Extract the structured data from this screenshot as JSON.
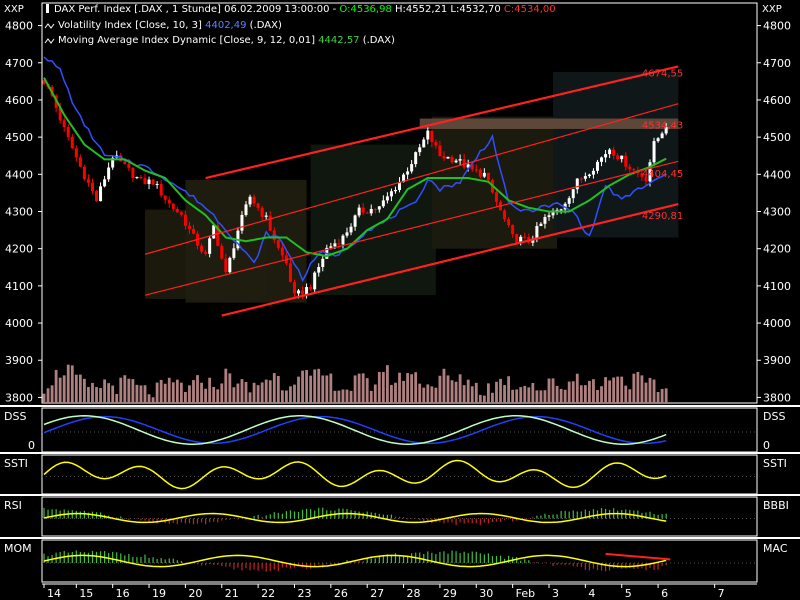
{
  "header": {
    "corner_left": "XXP",
    "corner_right": "XXP",
    "instrument": "DAX Perf. Index [.DAX , 1 Stunde] 06.02.2009 13:00:00 - ",
    "o_text": "O:4536,98",
    "h_text": " H:4552,21",
    "l_text": " L:4532,70",
    "c_text": " C:4534,00",
    "vol_text": "Volatility Index [Close, 10, 3] ",
    "vol_value": "4402,49",
    "vol_suffix": " (.DAX)",
    "ma_text": "Moving Average Index Dynamic [Close, 9, 12, 0,01] ",
    "ma_value": "4442,57",
    "ma_suffix": " (.DAX)"
  },
  "colors": {
    "up": "#ffffff",
    "down": "#ff0000",
    "volatility": "#3050ff",
    "moving_average": "#20c020",
    "channel": "#ff2020",
    "o_color": "#00ff00",
    "l_color": "#ffffff",
    "c_color": "#ff0000",
    "indicator_line": "#ffff00",
    "dss_fast": "#c0ffc0",
    "dss_slow": "#2040ff",
    "histogram_pos": "#40c040",
    "histogram_neg": "#d02020"
  },
  "chart_data": {
    "type": "candlestick",
    "y_ticks": [
      4800,
      4700,
      4600,
      4500,
      4400,
      4300,
      4200,
      4100,
      4000,
      3900,
      3800
    ],
    "ylim": [
      3785,
      4815
    ],
    "x_ticks": [
      {
        "label": "14",
        "i": 0
      },
      {
        "label": "15",
        "i": 8
      },
      {
        "label": "16",
        "i": 17
      },
      {
        "label": "19",
        "i": 26
      },
      {
        "label": "20",
        "i": 35
      },
      {
        "label": "21",
        "i": 44
      },
      {
        "label": "22",
        "i": 53
      },
      {
        "label": "23",
        "i": 62
      },
      {
        "label": "26",
        "i": 71
      },
      {
        "label": "27",
        "i": 80
      },
      {
        "label": "28",
        "i": 89
      },
      {
        "label": "29",
        "i": 98
      },
      {
        "label": "30",
        "i": 107
      },
      {
        "label": "Feb",
        "i": 116
      },
      {
        "label": "3",
        "i": 125
      },
      {
        "label": "4",
        "i": 134
      },
      {
        "label": "5",
        "i": 143
      },
      {
        "label": "6",
        "i": 152
      },
      {
        "label": "7",
        "i": 166
      }
    ],
    "close_keypoints": [
      [
        0,
        4650
      ],
      [
        2,
        4610
      ],
      [
        5,
        4520
      ],
      [
        9,
        4420
      ],
      [
        13,
        4330
      ],
      [
        17,
        4450
      ],
      [
        20,
        4420
      ],
      [
        24,
        4380
      ],
      [
        27,
        4380
      ],
      [
        31,
        4320
      ],
      [
        34,
        4290
      ],
      [
        37,
        4230
      ],
      [
        40,
        4180
      ],
      [
        42,
        4260
      ],
      [
        45,
        4130
      ],
      [
        48,
        4250
      ],
      [
        51,
        4340
      ],
      [
        55,
        4280
      ],
      [
        58,
        4200
      ],
      [
        60,
        4160
      ],
      [
        62,
        4070
      ],
      [
        66,
        4100
      ],
      [
        70,
        4200
      ],
      [
        74,
        4230
      ],
      [
        78,
        4300
      ],
      [
        83,
        4310
      ],
      [
        88,
        4380
      ],
      [
        92,
        4450
      ],
      [
        95,
        4510
      ],
      [
        98,
        4450
      ],
      [
        102,
        4440
      ],
      [
        106,
        4410
      ],
      [
        109,
        4400
      ],
      [
        113,
        4300
      ],
      [
        116,
        4230
      ],
      [
        120,
        4220
      ],
      [
        124,
        4280
      ],
      [
        128,
        4310
      ],
      [
        132,
        4380
      ],
      [
        136,
        4420
      ],
      [
        140,
        4470
      ],
      [
        143,
        4440
      ],
      [
        146,
        4410
      ],
      [
        149,
        4390
      ],
      [
        151,
        4480
      ],
      [
        154,
        4534
      ]
    ],
    "volatility_keypoints": [
      [
        0,
        4720
      ],
      [
        4,
        4680
      ],
      [
        8,
        4570
      ],
      [
        12,
        4500
      ],
      [
        15,
        4450
      ],
      [
        20,
        4440
      ],
      [
        25,
        4420
      ],
      [
        30,
        4390
      ],
      [
        34,
        4360
      ],
      [
        38,
        4330
      ],
      [
        42,
        4290
      ],
      [
        46,
        4240
      ],
      [
        49,
        4200
      ],
      [
        52,
        4160
      ],
      [
        55,
        4240
      ],
      [
        58,
        4230
      ],
      [
        61,
        4180
      ],
      [
        64,
        4120
      ],
      [
        68,
        4190
      ],
      [
        72,
        4180
      ],
      [
        76,
        4210
      ],
      [
        80,
        4250
      ],
      [
        84,
        4270
      ],
      [
        88,
        4300
      ],
      [
        92,
        4320
      ],
      [
        95,
        4390
      ],
      [
        98,
        4360
      ],
      [
        103,
        4380
      ],
      [
        108,
        4460
      ],
      [
        111,
        4500
      ],
      [
        115,
        4320
      ],
      [
        119,
        4300
      ],
      [
        123,
        4310
      ],
      [
        127,
        4320
      ],
      [
        131,
        4300
      ],
      [
        135,
        4230
      ],
      [
        139,
        4370
      ],
      [
        143,
        4330
      ],
      [
        147,
        4360
      ],
      [
        151,
        4380
      ],
      [
        154,
        4402
      ]
    ],
    "ma_keypoints": [
      [
        0,
        4660
      ],
      [
        5,
        4560
      ],
      [
        10,
        4480
      ],
      [
        15,
        4440
      ],
      [
        20,
        4440
      ],
      [
        25,
        4410
      ],
      [
        30,
        4390
      ],
      [
        35,
        4330
      ],
      [
        40,
        4290
      ],
      [
        45,
        4230
      ],
      [
        50,
        4220
      ],
      [
        55,
        4230
      ],
      [
        60,
        4230
      ],
      [
        65,
        4190
      ],
      [
        70,
        4180
      ],
      [
        75,
        4200
      ],
      [
        80,
        4250
      ],
      [
        85,
        4280
      ],
      [
        90,
        4360
      ],
      [
        95,
        4390
      ],
      [
        100,
        4390
      ],
      [
        105,
        4390
      ],
      [
        110,
        4380
      ],
      [
        115,
        4330
      ],
      [
        120,
        4310
      ],
      [
        125,
        4300
      ],
      [
        130,
        4300
      ],
      [
        135,
        4330
      ],
      [
        140,
        4370
      ],
      [
        145,
        4400
      ],
      [
        150,
        4420
      ],
      [
        154,
        4442
      ]
    ],
    "volume_keypoints": [
      [
        0,
        3830
      ],
      [
        3,
        3860
      ],
      [
        6,
        3880
      ],
      [
        9,
        3840
      ],
      [
        12,
        3820
      ],
      [
        15,
        3840
      ],
      [
        18,
        3830
      ],
      [
        21,
        3845
      ],
      [
        24,
        3820
      ],
      [
        27,
        3815
      ],
      [
        30,
        3830
      ],
      [
        33,
        3840
      ],
      [
        36,
        3820
      ],
      [
        39,
        3850
      ],
      [
        42,
        3830
      ],
      [
        45,
        3860
      ],
      [
        48,
        3840
      ],
      [
        51,
        3820
      ],
      [
        54,
        3845
      ],
      [
        57,
        3860
      ],
      [
        60,
        3830
      ],
      [
        63,
        3870
      ],
      [
        66,
        3850
      ],
      [
        69,
        3860
      ],
      [
        72,
        3840
      ],
      [
        75,
        3820
      ],
      [
        78,
        3850
      ],
      [
        81,
        3830
      ],
      [
        84,
        3880
      ],
      [
        87,
        3840
      ],
      [
        90,
        3870
      ],
      [
        93,
        3850
      ],
      [
        96,
        3830
      ],
      [
        99,
        3860
      ],
      [
        102,
        3840
      ],
      [
        105,
        3850
      ],
      [
        108,
        3820
      ],
      [
        111,
        3830
      ],
      [
        114,
        3850
      ],
      [
        117,
        3830
      ],
      [
        120,
        3845
      ],
      [
        123,
        3820
      ],
      [
        126,
        3840
      ],
      [
        129,
        3830
      ],
      [
        132,
        3860
      ],
      [
        135,
        3840
      ],
      [
        138,
        3830
      ],
      [
        141,
        3870
      ],
      [
        144,
        3840
      ],
      [
        147,
        3850
      ],
      [
        150,
        3830
      ],
      [
        154,
        3820
      ]
    ],
    "channel_lines": [
      {
        "i1": 40,
        "v1": 4390,
        "i2": 157,
        "v2": 4690
      },
      {
        "i1": 25,
        "v1": 4185,
        "i2": 157,
        "v2": 4590
      },
      {
        "i1": 25,
        "v1": 4075,
        "i2": 157,
        "v2": 4435
      },
      {
        "i1": 44,
        "v1": 4020,
        "i2": 157,
        "v2": 4320
      }
    ],
    "channel_labels": [
      {
        "text": "4674,55",
        "i": 148,
        "v": 4674
      },
      {
        "text": "4534,43",
        "i": 148,
        "v": 4534
      },
      {
        "text": "4404,45",
        "i": 148,
        "v": 4404
      },
      {
        "text": "4290,81",
        "i": 148,
        "v": 4290
      }
    ],
    "shaded_zones": [
      {
        "i1": 25,
        "i2": 55,
        "v1": 4065,
        "v2": 4305
      },
      {
        "i1": 35,
        "i2": 65,
        "v1": 4055,
        "v2": 4385
      },
      {
        "i1": 66,
        "i2": 97,
        "v1": 4075,
        "v2": 4480
      },
      {
        "i1": 96,
        "i2": 127,
        "v1": 4200,
        "v2": 4555
      },
      {
        "i1": 126,
        "i2": 157,
        "v1": 4230,
        "v2": 4675
      }
    ],
    "highlight_band": {
      "i1": 93,
      "i2": 157,
      "v1": 4522,
      "v2": 4550
    },
    "panels": [
      {
        "name": "DSS",
        "left_label": "DSS",
        "right_label": "DSS",
        "zero_label": "0",
        "type": "dss"
      },
      {
        "name": "SSTI",
        "left_label": "SSTI",
        "right_label": "SSTI",
        "type": "line"
      },
      {
        "name": "RSI",
        "left_label": "RSI",
        "right_label": "BBBI",
        "type": "line_hist"
      },
      {
        "name": "MOM",
        "left_label": "MOM",
        "right_label": "MAC",
        "type": "mom"
      }
    ]
  }
}
